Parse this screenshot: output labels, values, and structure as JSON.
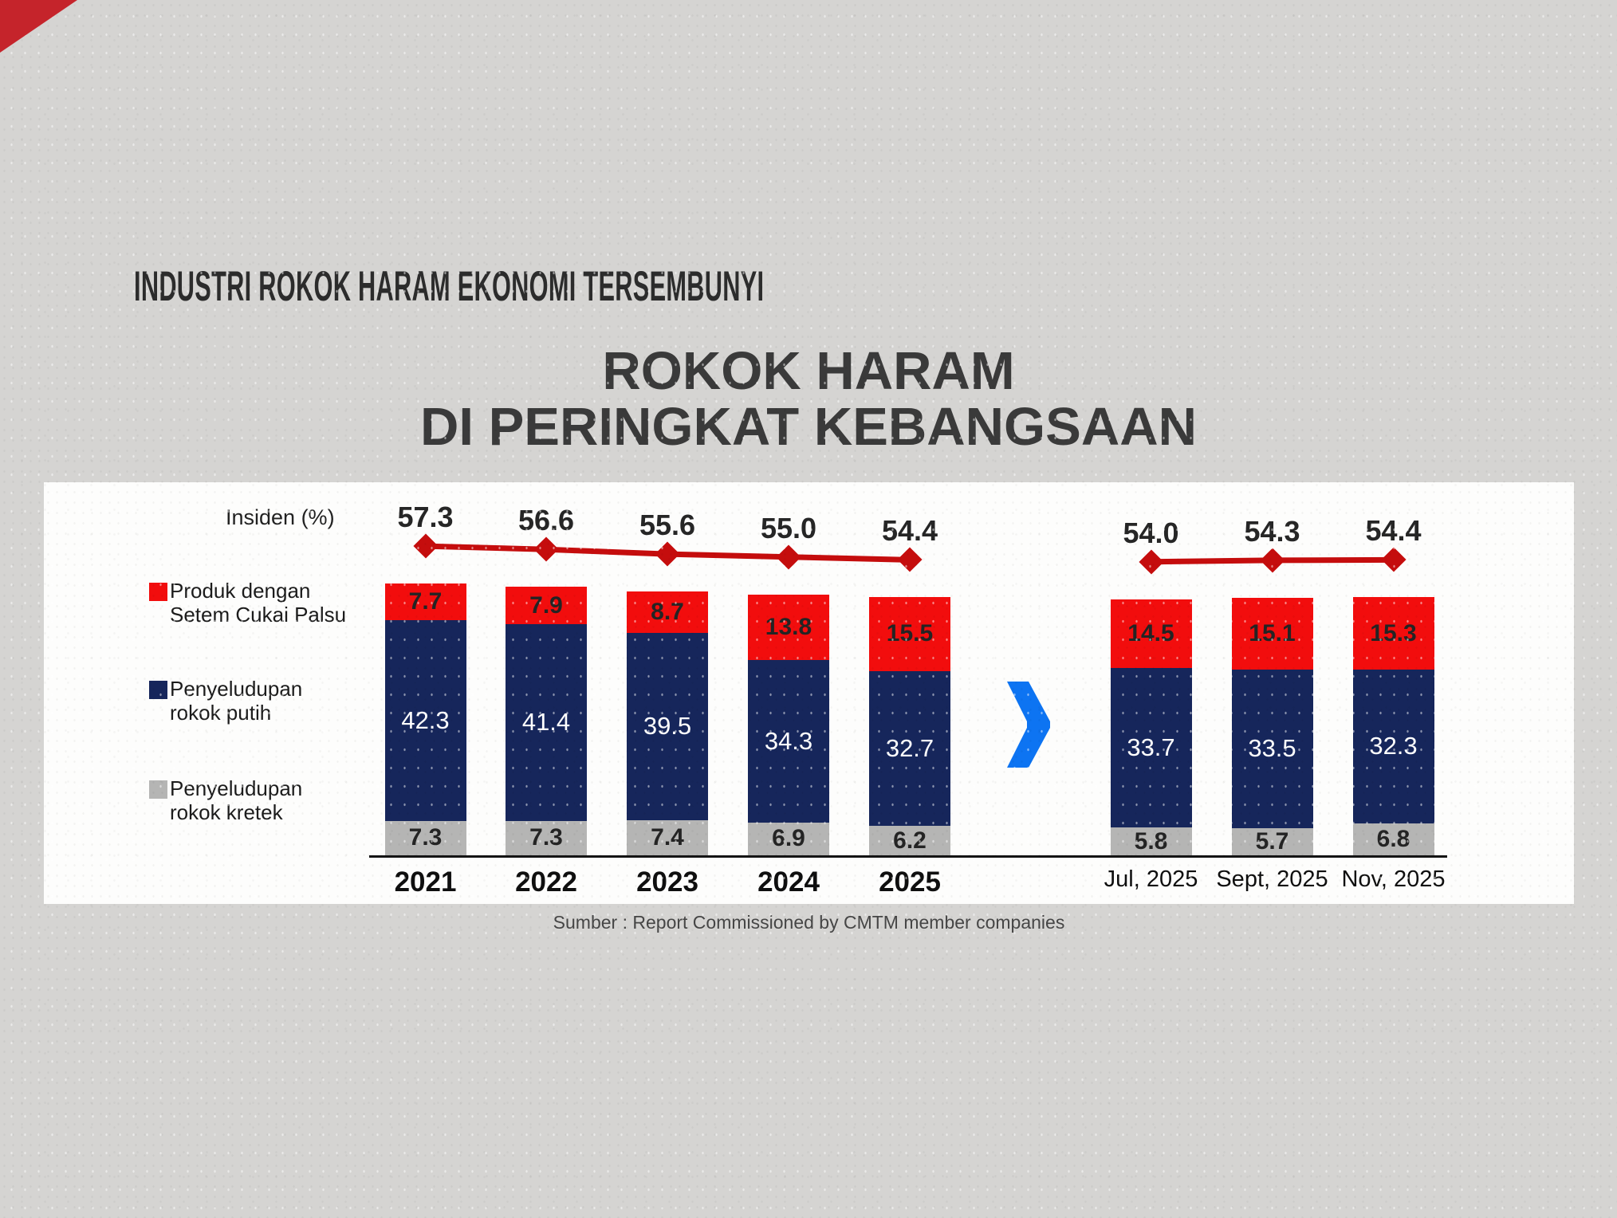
{
  "page": {
    "kicker": "INDUSTRI ROKOK HARAM EKONOMI TERSEMBUNYI",
    "title_line1": "ROKOK HARAM",
    "title_line2": "DI PERINGKAT KEBANGSAAN",
    "source": "Sumber : Report Commissioned by CMTM member companies"
  },
  "colors": {
    "segment_red": "#f20d0d",
    "segment_navy": "#16265b",
    "segment_gray": "#b5b5b4",
    "line_red": "#c50d0d",
    "chevron_blue": "#0d74f2",
    "corner_red": "#c5242b",
    "panel_white": "#fdfdfc",
    "background_gray": "#d5d4d2"
  },
  "chart_data": {
    "type": "combo-stacked-bar-line",
    "line_label": "Insiden (%)",
    "legend": [
      {
        "label": "Produk dengan Setem Cukai Palsu",
        "line1": "Produk dengan",
        "line2": "Setem Cukai Palsu",
        "color": "#f20d0d"
      },
      {
        "label": "Penyeludupan rokok putih",
        "line1": "Penyeludupan",
        "line2": "rokok putih",
        "color": "#16265b"
      },
      {
        "label": "Penyeludupan rokok kretek",
        "line1": "Penyeludupan",
        "line2": "rokok kretek",
        "color": "#b5b5b4"
      }
    ],
    "groups": [
      {
        "name": "annual",
        "categories": [
          "2021",
          "2022",
          "2023",
          "2024",
          "2025"
        ],
        "insiden": [
          57.3,
          56.6,
          55.6,
          55.0,
          54.4
        ],
        "series": [
          {
            "name": "Produk dengan Setem Cukai Palsu",
            "key": "setem_cukai_palsu",
            "values": [
              7.7,
              7.9,
              8.7,
              13.8,
              15.5
            ]
          },
          {
            "name": "Penyeludupan rokok putih",
            "key": "rokok_putih",
            "values": [
              42.3,
              41.4,
              39.5,
              34.3,
              32.7
            ]
          },
          {
            "name": "Penyeludupan rokok kretek",
            "key": "rokok_kretek",
            "values": [
              7.3,
              7.3,
              7.4,
              6.9,
              6.2
            ]
          }
        ]
      },
      {
        "name": "monthly",
        "categories": [
          "Jul, 2025",
          "Sept, 2025",
          "Nov, 2025"
        ],
        "insiden": [
          54.0,
          54.3,
          54.4
        ],
        "series": [
          {
            "name": "Produk dengan Setem Cukai Palsu",
            "key": "setem_cukai_palsu",
            "values": [
              14.5,
              15.1,
              15.3
            ]
          },
          {
            "name": "Penyeludupan rokok putih",
            "key": "rokok_putih",
            "values": [
              33.7,
              33.5,
              32.3
            ]
          },
          {
            "name": "Penyeludupan rokok kretek",
            "key": "rokok_kretek",
            "values": [
              5.8,
              5.7,
              6.8
            ]
          }
        ]
      }
    ]
  }
}
